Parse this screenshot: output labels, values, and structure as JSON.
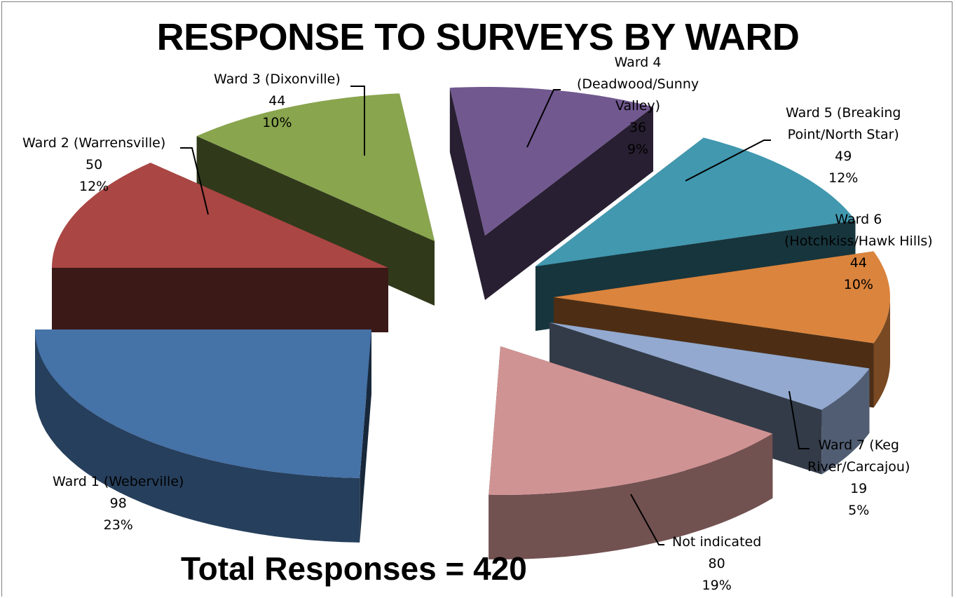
{
  "chart_data": {
    "type": "pie",
    "title": "RESPONSE TO SURVEYS BY WARD",
    "annotation": "Total Responses =  420",
    "slices": [
      {
        "name_lines": [
          "Ward 1 (Weberville)"
        ],
        "value": "98",
        "percent": "23%",
        "color": "#4572a7"
      },
      {
        "name_lines": [
          "Ward 2 (Warrensville)"
        ],
        "value": "50",
        "percent": "12%",
        "color": "#aa4643"
      },
      {
        "name_lines": [
          "Ward 3 (Dixonville)"
        ],
        "value": "44",
        "percent": "10%",
        "color": "#89a54e"
      },
      {
        "name_lines": [
          "Ward 4",
          "(Deadwood/Sunny",
          "Valley)"
        ],
        "value": "36",
        "percent": "9%",
        "color": "#71588f"
      },
      {
        "name_lines": [
          "Ward 5 (Breaking",
          "Point/North Star)"
        ],
        "value": "49",
        "percent": "12%",
        "color": "#4198af"
      },
      {
        "name_lines": [
          "Ward 6",
          "(Hotchkiss/Hawk Hills)"
        ],
        "value": "44",
        "percent": "10%",
        "color": "#db843d"
      },
      {
        "name_lines": [
          "Ward 7 (Keg",
          "River/Carcajou)"
        ],
        "value": "19",
        "percent": "5%",
        "color": "#93a9cf"
      },
      {
        "name_lines": [
          "Not indicated"
        ],
        "value": "80",
        "percent": "19%",
        "color": "#d09393"
      }
    ],
    "legend": "none",
    "style": "3d-exploded-pie"
  }
}
